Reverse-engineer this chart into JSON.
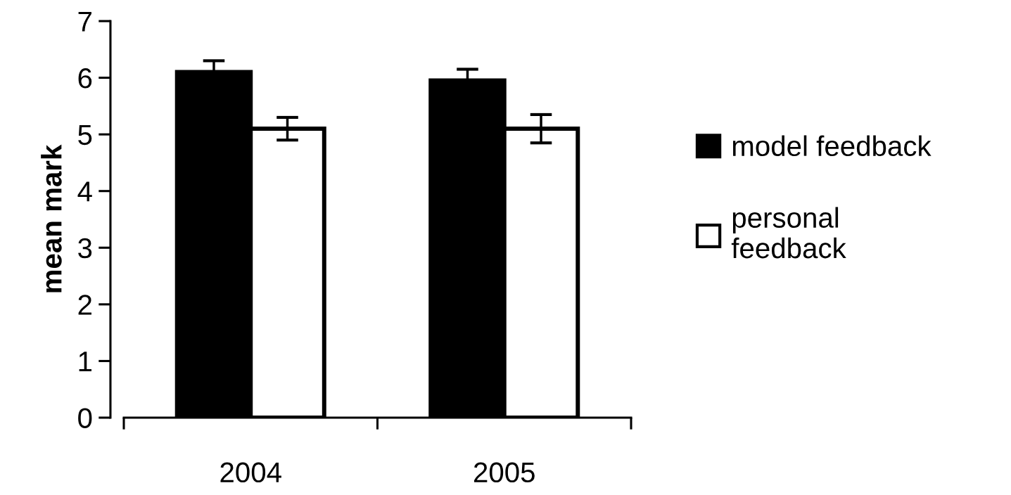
{
  "chart_data": {
    "type": "bar",
    "ylabel": "mean mark",
    "categories": [
      "2004",
      "2005"
    ],
    "series": [
      {
        "name": "model feedback",
        "color": "#000000",
        "values": [
          6.1,
          5.95
        ],
        "errors": [
          0.2,
          0.2
        ]
      },
      {
        "name": "personal feedback",
        "color": "#ffffff",
        "values": [
          5.1,
          5.1
        ],
        "errors": [
          0.2,
          0.25
        ]
      }
    ],
    "ylim": [
      0,
      7
    ],
    "yticks": [
      0,
      1,
      2,
      3,
      4,
      5,
      6,
      7
    ],
    "grid": false,
    "legend": "right"
  }
}
